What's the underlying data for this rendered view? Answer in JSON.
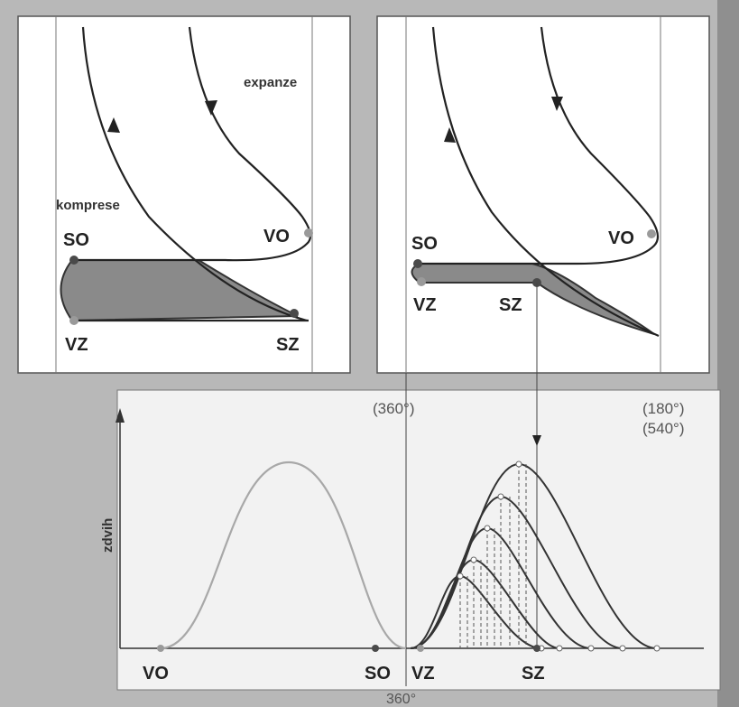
{
  "left_panel": {
    "expansion_label": "expanze",
    "compression_label": "komprese",
    "points": {
      "so": "SO",
      "vo": "VO",
      "vz": "VZ",
      "sz": "SZ"
    }
  },
  "right_panel": {
    "points": {
      "so": "SO",
      "vo": "VO",
      "vz": "VZ",
      "sz": "SZ"
    }
  },
  "lift_chart": {
    "y_axis_label": "zdvih",
    "angle_label_left": "(360°)",
    "angle_label_right_top": "(180°)",
    "angle_label_right_bottom": "(540°)",
    "bottom_angle": "360°",
    "x_labels": {
      "vo": "VO",
      "so": "SO",
      "vz": "VZ",
      "sz": "SZ"
    },
    "curve_count": 5
  },
  "colors": {
    "background": "#b8b8b8",
    "panel": "#ffffff",
    "loop_fill": "#8a8a8a",
    "curve": "#222222",
    "light_curve": "#a8a8a8",
    "gray_dot": "#9a9a9a",
    "dark_dot": "#4a4a4a"
  }
}
